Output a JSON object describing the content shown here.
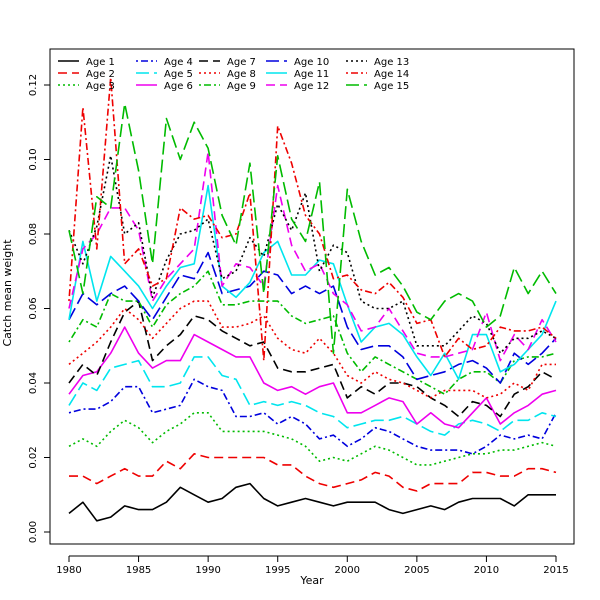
{
  "chart_data": {
    "type": "line",
    "title": "",
    "xlabel": "Year",
    "ylabel": "Catch mean weight",
    "xlim": [
      1980,
      2015
    ],
    "ylim": [
      0,
      0.12
    ],
    "x_ticks": [
      "1980",
      "1985",
      "1990",
      "1995",
      "2000",
      "2005",
      "2010",
      "2015"
    ],
    "y_ticks": [
      "0.00",
      "0.02",
      "0.04",
      "0.06",
      "0.08",
      "0.10",
      "0.12"
    ],
    "legend_position": "top-left",
    "x": [
      1980,
      1981,
      1982,
      1983,
      1984,
      1985,
      1986,
      1987,
      1988,
      1989,
      1990,
      1991,
      1992,
      1993,
      1994,
      1995,
      1996,
      1997,
      1998,
      1999,
      2000,
      2001,
      2002,
      2003,
      2004,
      2005,
      2006,
      2007,
      2008,
      2009,
      2010,
      2011,
      2012,
      2013,
      2014,
      2015
    ],
    "series": [
      {
        "name": "Age 1",
        "color": "#000000",
        "dash": "solid",
        "values": [
          0.005,
          0.008,
          0.003,
          0.004,
          0.007,
          0.006,
          0.006,
          0.008,
          0.012,
          0.01,
          0.008,
          0.009,
          0.012,
          0.013,
          0.009,
          0.007,
          0.008,
          0.009,
          0.008,
          0.007,
          0.008,
          0.008,
          0.008,
          0.006,
          0.005,
          0.006,
          0.007,
          0.006,
          0.008,
          0.009,
          0.009,
          0.009,
          0.007,
          0.01,
          0.01,
          0.01
        ]
      },
      {
        "name": "Age 2",
        "color": "#ee0000",
        "dash": "dashed",
        "values": [
          0.015,
          0.015,
          0.013,
          0.015,
          0.017,
          0.015,
          0.015,
          0.019,
          0.017,
          0.021,
          0.02,
          0.02,
          0.02,
          0.02,
          0.02,
          0.018,
          0.018,
          0.015,
          0.013,
          0.012,
          0.013,
          0.014,
          0.016,
          0.015,
          0.012,
          0.011,
          0.013,
          0.013,
          0.013,
          0.016,
          0.016,
          0.015,
          0.015,
          0.017,
          0.017,
          0.016
        ]
      },
      {
        "name": "Age 3",
        "color": "#00bb00",
        "dash": "dotted",
        "values": [
          0.023,
          0.025,
          0.023,
          0.027,
          0.03,
          0.028,
          0.024,
          0.027,
          0.029,
          0.032,
          0.032,
          0.027,
          0.027,
          0.027,
          0.027,
          0.026,
          0.025,
          0.023,
          0.019,
          0.02,
          0.019,
          0.021,
          0.023,
          0.022,
          0.02,
          0.018,
          0.018,
          0.019,
          0.02,
          0.021,
          0.021,
          0.022,
          0.022,
          0.023,
          0.024,
          0.023
        ]
      },
      {
        "name": "Age 4",
        "color": "#0000dd",
        "dash": "dotdash",
        "values": [
          0.032,
          0.033,
          0.033,
          0.035,
          0.039,
          0.039,
          0.032,
          0.033,
          0.034,
          0.041,
          0.039,
          0.038,
          0.031,
          0.031,
          0.032,
          0.029,
          0.031,
          0.029,
          0.025,
          0.026,
          0.023,
          0.025,
          0.028,
          0.027,
          0.025,
          0.023,
          0.022,
          0.022,
          0.022,
          0.021,
          0.023,
          0.026,
          0.025,
          0.026,
          0.025,
          0.032
        ]
      },
      {
        "name": "Age 5",
        "color": "#00e5ee",
        "dash": "longdash",
        "values": [
          0.034,
          0.04,
          0.038,
          0.044,
          0.045,
          0.046,
          0.039,
          0.039,
          0.04,
          0.047,
          0.047,
          0.042,
          0.041,
          0.034,
          0.035,
          0.034,
          0.035,
          0.034,
          0.032,
          0.031,
          0.028,
          0.029,
          0.03,
          0.03,
          0.031,
          0.029,
          0.027,
          0.026,
          0.029,
          0.03,
          0.029,
          0.027,
          0.03,
          0.03,
          0.032,
          0.031
        ]
      },
      {
        "name": "Age 6",
        "color": "#ee00ee",
        "dash": "solid",
        "values": [
          0.037,
          0.042,
          0.043,
          0.048,
          0.055,
          0.048,
          0.044,
          0.046,
          0.046,
          0.053,
          0.051,
          0.049,
          0.047,
          0.047,
          0.04,
          0.038,
          0.039,
          0.037,
          0.039,
          0.04,
          0.032,
          0.032,
          0.034,
          0.036,
          0.035,
          0.029,
          0.032,
          0.029,
          0.028,
          0.032,
          0.036,
          0.029,
          0.032,
          0.034,
          0.037,
          0.038
        ]
      },
      {
        "name": "Age 7",
        "color": "#000000",
        "dash": "dashed",
        "values": [
          0.04,
          0.045,
          0.042,
          0.051,
          0.059,
          0.062,
          0.046,
          0.05,
          0.053,
          0.058,
          0.057,
          0.054,
          0.052,
          0.05,
          0.051,
          0.044,
          0.043,
          0.043,
          0.044,
          0.045,
          0.036,
          0.039,
          0.037,
          0.04,
          0.04,
          0.039,
          0.036,
          0.034,
          0.031,
          0.035,
          0.034,
          0.031,
          0.037,
          0.039,
          0.043,
          0.041
        ]
      },
      {
        "name": "Age 8",
        "color": "#ee0000",
        "dash": "dotted",
        "values": [
          0.045,
          0.048,
          0.051,
          0.055,
          0.06,
          0.057,
          0.052,
          0.056,
          0.06,
          0.062,
          0.062,
          0.055,
          0.055,
          0.056,
          0.058,
          0.052,
          0.049,
          0.048,
          0.052,
          0.048,
          0.042,
          0.04,
          0.043,
          0.041,
          0.04,
          0.038,
          0.036,
          0.038,
          0.038,
          0.038,
          0.036,
          0.037,
          0.04,
          0.038,
          0.045,
          0.045
        ]
      },
      {
        "name": "Age 9",
        "color": "#00bb00",
        "dash": "dotdash",
        "values": [
          0.051,
          0.057,
          0.055,
          0.064,
          0.062,
          0.062,
          0.055,
          0.061,
          0.064,
          0.066,
          0.07,
          0.061,
          0.061,
          0.062,
          0.062,
          0.062,
          0.058,
          0.056,
          0.057,
          0.058,
          0.048,
          0.043,
          0.047,
          0.045,
          0.043,
          0.041,
          0.039,
          0.037,
          0.041,
          0.043,
          0.043,
          0.04,
          0.046,
          0.047,
          0.047,
          0.048
        ]
      },
      {
        "name": "Age 10",
        "color": "#0000dd",
        "dash": "longdash",
        "values": [
          0.057,
          0.064,
          0.061,
          0.064,
          0.066,
          0.062,
          0.057,
          0.063,
          0.069,
          0.068,
          0.075,
          0.064,
          0.065,
          0.066,
          0.07,
          0.069,
          0.064,
          0.066,
          0.064,
          0.066,
          0.055,
          0.049,
          0.05,
          0.05,
          0.047,
          0.041,
          0.042,
          0.043,
          0.045,
          0.046,
          0.044,
          0.04,
          0.048,
          0.045,
          0.048,
          0.052
        ]
      },
      {
        "name": "Age 11",
        "color": "#00e5ee",
        "dash": "solid",
        "values": [
          0.057,
          0.078,
          0.062,
          0.074,
          0.07,
          0.066,
          0.06,
          0.066,
          0.071,
          0.072,
          0.093,
          0.066,
          0.063,
          0.067,
          0.075,
          0.078,
          0.069,
          0.069,
          0.073,
          0.072,
          0.061,
          0.051,
          0.055,
          0.056,
          0.053,
          0.047,
          0.042,
          0.048,
          0.041,
          0.053,
          0.053,
          0.043,
          0.045,
          0.049,
          0.053,
          0.062
        ]
      },
      {
        "name": "Age 12",
        "color": "#ee00ee",
        "dash": "dashed",
        "values": [
          0.06,
          0.076,
          0.08,
          0.087,
          0.087,
          0.081,
          0.062,
          0.068,
          0.072,
          0.076,
          0.102,
          0.066,
          0.072,
          0.071,
          0.066,
          0.093,
          0.077,
          0.07,
          0.072,
          0.064,
          0.061,
          0.054,
          0.055,
          0.06,
          0.054,
          0.048,
          0.047,
          0.047,
          0.048,
          0.049,
          0.059,
          0.046,
          0.053,
          0.049,
          0.057,
          0.051
        ]
      },
      {
        "name": "Age 13",
        "color": "#000000",
        "dash": "dotted",
        "values": [
          0.081,
          0.072,
          0.082,
          0.101,
          0.08,
          0.083,
          0.063,
          0.073,
          0.08,
          0.081,
          0.084,
          0.068,
          0.07,
          0.079,
          0.074,
          0.088,
          0.081,
          0.091,
          0.07,
          0.077,
          0.075,
          0.062,
          0.06,
          0.06,
          0.062,
          0.05,
          0.05,
          0.05,
          0.054,
          0.058,
          0.056,
          0.048,
          0.052,
          0.052,
          0.054,
          0.052
        ]
      },
      {
        "name": "Age 14",
        "color": "#ee0000",
        "dash": "dotdash",
        "values": [
          0.062,
          0.114,
          0.076,
          0.122,
          0.072,
          0.076,
          0.066,
          0.068,
          0.087,
          0.084,
          0.085,
          0.079,
          0.08,
          0.091,
          0.046,
          0.109,
          0.099,
          0.085,
          0.08,
          0.068,
          0.069,
          0.065,
          0.064,
          0.067,
          0.063,
          0.056,
          0.057,
          0.047,
          0.052,
          0.049,
          0.05,
          0.055,
          0.054,
          0.054,
          0.055,
          0.052
        ]
      },
      {
        "name": "Age 15",
        "color": "#00bb00",
        "dash": "longdash",
        "values": [
          0.081,
          0.064,
          0.09,
          0.087,
          0.115,
          0.097,
          0.072,
          0.111,
          0.1,
          0.11,
          0.103,
          0.085,
          0.077,
          0.099,
          0.064,
          0.101,
          0.084,
          0.078,
          0.094,
          0.048,
          0.092,
          0.078,
          0.069,
          0.071,
          0.066,
          0.059,
          0.057,
          0.062,
          0.064,
          0.062,
          0.055,
          0.058,
          0.071,
          0.064,
          0.07,
          0.064
        ]
      }
    ]
  }
}
